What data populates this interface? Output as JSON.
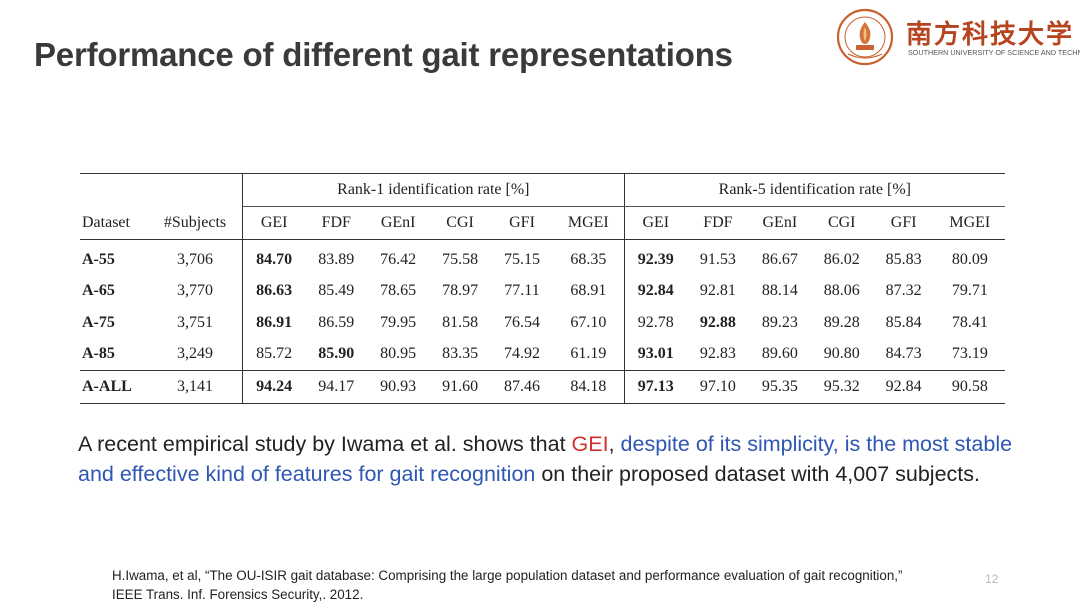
{
  "title": "Performance of different gait representations",
  "logo": {
    "chinese": "南方科技大学",
    "english": "SOUTHERN UNIVERSITY OF SCIENCE AND TECHNOLOGY",
    "accent_color": "#b6451f"
  },
  "table": {
    "group_headers": [
      "Rank-1 identification rate [%]",
      "Rank-5 identification rate [%]"
    ],
    "columns": [
      "Dataset",
      "#Subjects",
      "GEI",
      "FDF",
      "GEnI",
      "CGI",
      "GFI",
      "MGEI",
      "GEI",
      "FDF",
      "GEnI",
      "CGI",
      "GFI",
      "MGEI"
    ],
    "rows": [
      {
        "cells": [
          "A-55",
          "3,706",
          "84.70",
          "83.89",
          "76.42",
          "75.58",
          "75.15",
          "68.35",
          "92.39",
          "91.53",
          "86.67",
          "86.02",
          "85.83",
          "80.09"
        ],
        "bold": [
          0,
          2,
          8
        ]
      },
      {
        "cells": [
          "A-65",
          "3,770",
          "86.63",
          "85.49",
          "78.65",
          "78.97",
          "77.11",
          "68.91",
          "92.84",
          "92.81",
          "88.14",
          "88.06",
          "87.32",
          "79.71"
        ],
        "bold": [
          0,
          2,
          8
        ]
      },
      {
        "cells": [
          "A-75",
          "3,751",
          "86.91",
          "86.59",
          "79.95",
          "81.58",
          "76.54",
          "67.10",
          "92.78",
          "92.88",
          "89.23",
          "89.28",
          "85.84",
          "78.41"
        ],
        "bold": [
          0,
          2,
          9
        ]
      },
      {
        "cells": [
          "A-85",
          "3,249",
          "85.72",
          "85.90",
          "80.95",
          "83.35",
          "74.92",
          "61.19",
          "93.01",
          "92.83",
          "89.60",
          "90.80",
          "84.73",
          "73.19"
        ],
        "bold": [
          0,
          3,
          8
        ]
      },
      {
        "cells": [
          "A-ALL",
          "3,141",
          "94.24",
          "94.17",
          "90.93",
          "91.60",
          "87.46",
          "84.18",
          "97.13",
          "97.10",
          "95.35",
          "95.32",
          "92.84",
          "90.58"
        ],
        "bold": [
          0,
          2,
          8
        ]
      }
    ]
  },
  "paragraph": {
    "part1": "A recent empirical study by Iwama et al. shows that ",
    "highlight_red": "GEI",
    "part2": ", ",
    "highlight_blue": "despite of its simplicity, is the most stable and effective kind of features for gait recognition",
    "part3": " on their proposed dataset with 4,007 subjects.",
    "red_color": "#d2322d",
    "blue_color": "#2f56b2"
  },
  "reference": {
    "line1": "H.Iwama, et al,  “The OU-ISIR gait database: Comprising the large population dataset and performance evaluation of gait recognition,”",
    "line2": "IEEE Trans. Inf. Forensics Security,. 2012."
  },
  "page_number": "12"
}
